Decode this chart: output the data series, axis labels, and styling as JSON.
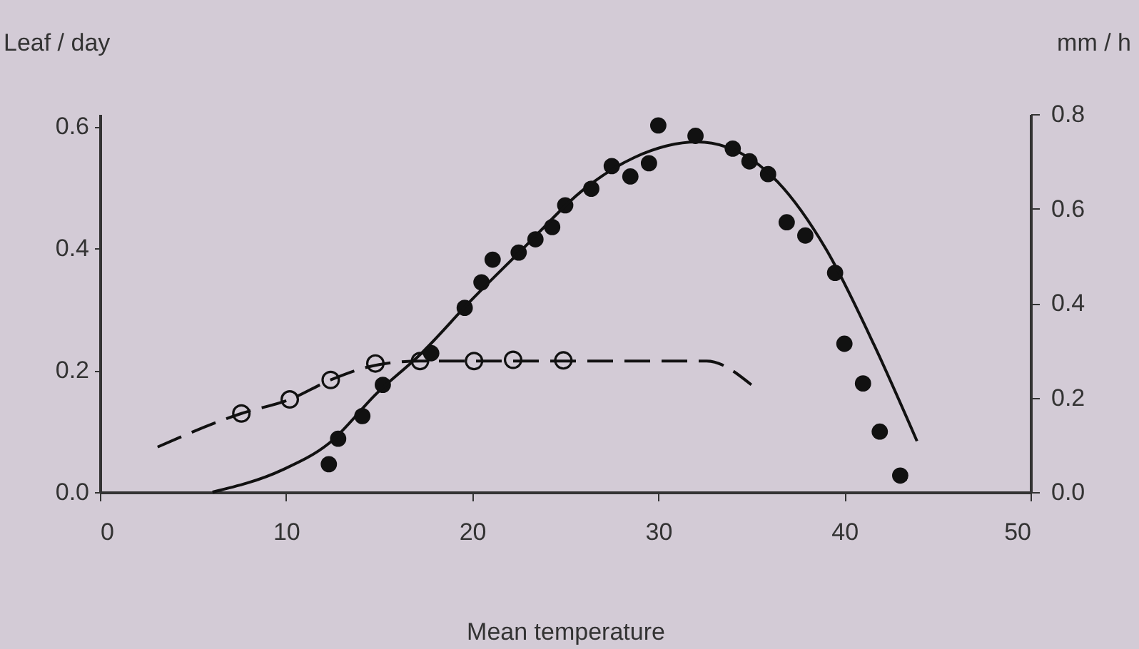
{
  "chart_data": {
    "type": "scatter",
    "xlabel": "Mean temperature",
    "ylabel": "Leaf / day",
    "y2label": "mm / h",
    "xlim": [
      0,
      50
    ],
    "xticks": [
      0,
      10,
      20,
      30,
      40,
      50
    ],
    "ylim": [
      0,
      0.62
    ],
    "yticks": [
      {
        "value": 0,
        "label": "0.0"
      },
      0.2,
      0.4,
      0.6
    ],
    "y2lim": [
      0,
      0.8
    ],
    "y2ticks": [
      {
        "value": 0,
        "label": "0.0"
      },
      0.2,
      0.4,
      0.6,
      0.8
    ],
    "grid": false,
    "series": [
      {
        "axis": "y",
        "marker": "circle",
        "color": "#111111",
        "x": [
          7.6,
          10.2,
          12.4,
          14.8,
          17.2,
          20.1,
          22.2,
          24.9
        ],
        "values": [
          0.129,
          0.152,
          0.184,
          0.211,
          0.215,
          0.215,
          0.217,
          0.216
        ]
      },
      {
        "type": "line",
        "axis": "y",
        "line_style": "dashed",
        "color": "#111111",
        "x": [
          3.1,
          7.6,
          10.2,
          12.4,
          14.8,
          17.2,
          20.0,
          25.0,
          32.6,
          35.0
        ],
        "values": [
          0.074,
          0.129,
          0.152,
          0.184,
          0.208,
          0.215,
          0.215,
          0.215,
          0.215,
          0.176
        ]
      },
      {
        "axis": "y2",
        "marker": "circle",
        "color": "#111111",
        "x": [
          12.3,
          12.8,
          14.1,
          15.2,
          17.8,
          19.6,
          20.5,
          21.1,
          22.5,
          23.4,
          24.3,
          25.0,
          26.4,
          27.5,
          28.5,
          29.5,
          30.0,
          32.0,
          34.0,
          34.9,
          35.9,
          36.9,
          37.9,
          39.5,
          40.0,
          41.0,
          41.9,
          43.0
        ],
        "values": [
          0.059,
          0.113,
          0.161,
          0.227,
          0.294,
          0.39,
          0.444,
          0.492,
          0.507,
          0.535,
          0.561,
          0.607,
          0.642,
          0.69,
          0.668,
          0.696,
          0.776,
          0.754,
          0.727,
          0.7,
          0.673,
          0.571,
          0.543,
          0.464,
          0.314,
          0.23,
          0.128,
          0.035
        ]
      },
      {
        "type": "line",
        "axis": "y2",
        "line_style": "solid",
        "color": "#111111",
        "x": [
          6.05,
          9.8,
          12.3,
          14.9,
          17.2,
          20.0,
          22.6,
          26.2,
          28.7,
          32.1,
          34.4,
          36.4,
          39.0,
          41.6,
          43.9
        ],
        "values": [
          0.0,
          0.047,
          0.103,
          0.21,
          0.291,
          0.408,
          0.51,
          0.647,
          0.708,
          0.741,
          0.718,
          0.657,
          0.515,
          0.311,
          0.108
        ]
      }
    ]
  }
}
